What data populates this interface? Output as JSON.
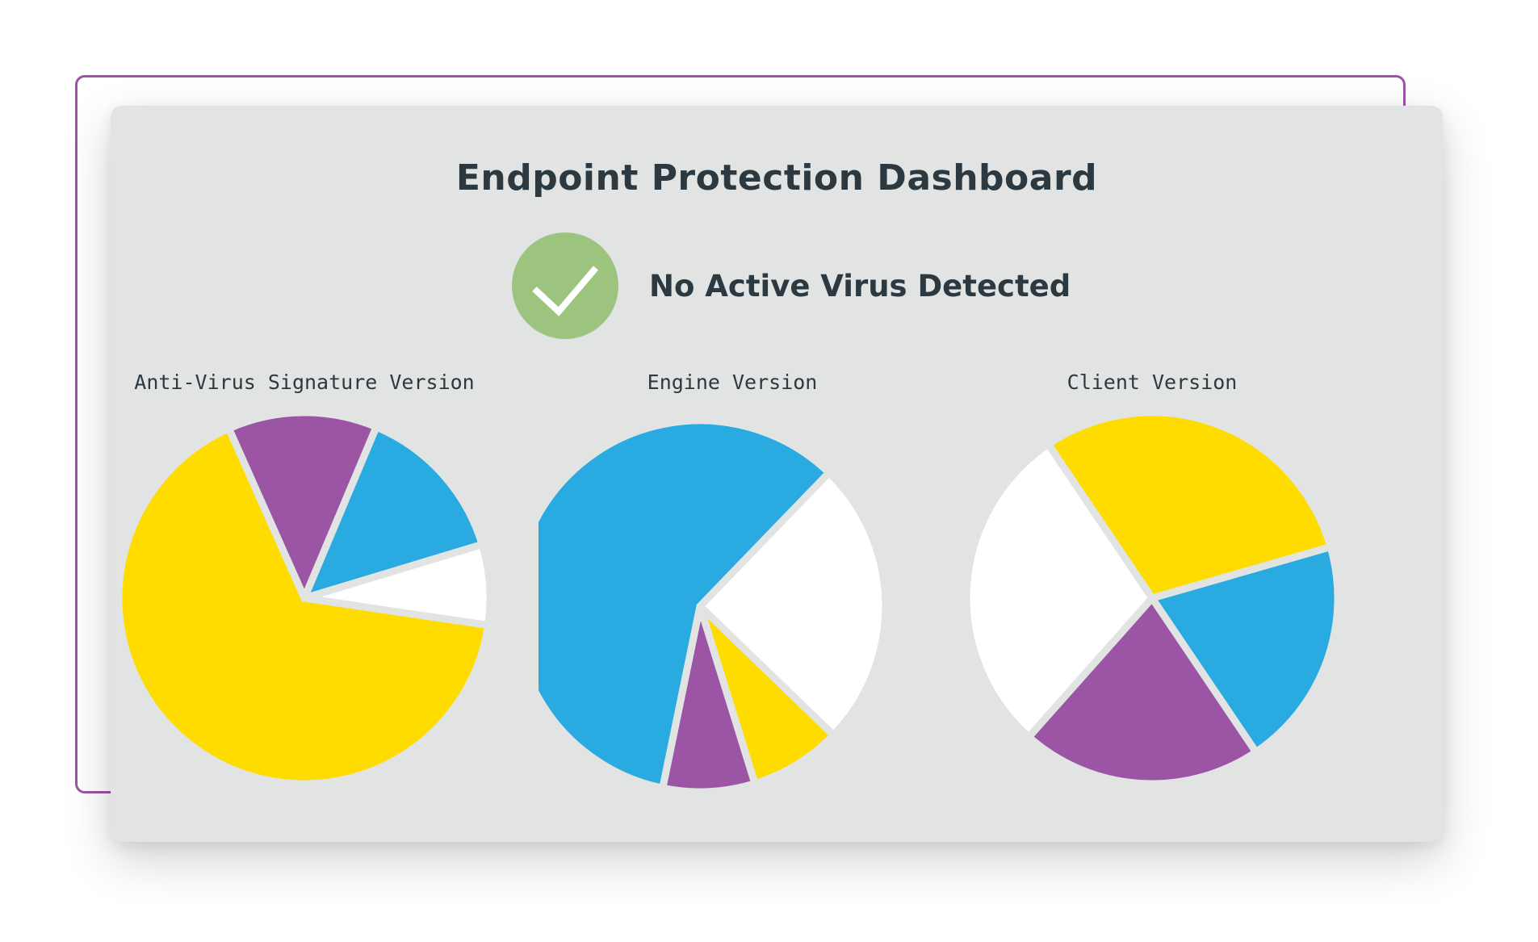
{
  "dashboard": {
    "title": "Endpoint Protection Dashboard",
    "status_text": "No Active Virus Detected",
    "status_icon": "checkmark-icon",
    "status_color": "#9cc47f"
  },
  "chart_data": [
    {
      "type": "pie",
      "title": "Anti-Virus Signature Version",
      "slices": [
        {
          "color": "#9b55a4",
          "value": 13
        },
        {
          "color": "#29aae1",
          "value": 14
        },
        {
          "color": "#ffffff",
          "value": 7
        },
        {
          "color": "#fedc00",
          "value": 66
        }
      ]
    },
    {
      "type": "pie",
      "title": "Engine Version",
      "slices": [
        {
          "color": "#ffffff",
          "value": 25
        },
        {
          "color": "#fedc00",
          "value": 8
        },
        {
          "color": "#9b55a4",
          "value": 8
        },
        {
          "color": "#29aae1",
          "value": 59
        }
      ]
    },
    {
      "type": "pie",
      "title": "Client Version",
      "slices": [
        {
          "color": "#fedc00",
          "value": 30
        },
        {
          "color": "#29aae1",
          "value": 20
        },
        {
          "color": "#9b55a4",
          "value": 21
        },
        {
          "color": "#ffffff",
          "value": 29
        }
      ]
    }
  ]
}
